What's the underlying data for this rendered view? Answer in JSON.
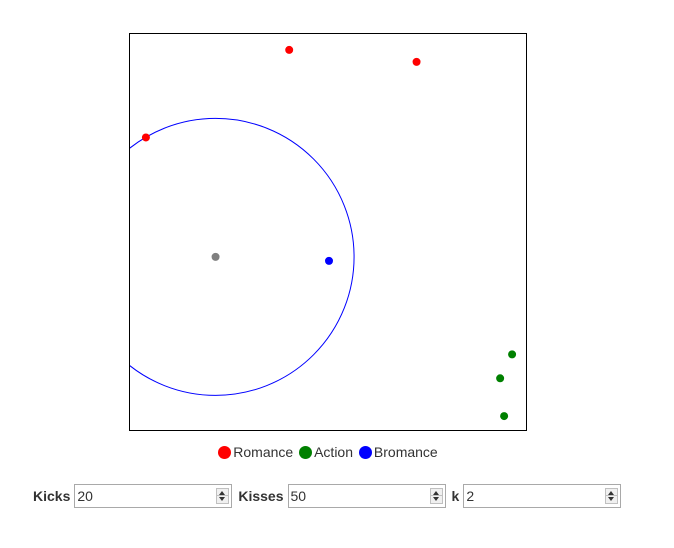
{
  "chart_data": {
    "type": "scatter",
    "title": "",
    "xlabel": "",
    "ylabel": "",
    "xlim": [
      0,
      100
    ],
    "ylim": [
      0,
      100
    ],
    "grid": false,
    "series": [
      {
        "name": "Romance",
        "color": "#ff0000",
        "points": [
          [
            40,
            96
          ],
          [
            72,
            93
          ],
          [
            4,
            74
          ]
        ]
      },
      {
        "name": "Action",
        "color": "#008000",
        "points": [
          [
            96,
            19.5
          ],
          [
            93,
            13.5
          ],
          [
            94,
            4
          ]
        ]
      },
      {
        "name": "Bromance",
        "color": "#0000ff",
        "points": [
          [
            50,
            43
          ]
        ]
      }
    ],
    "query_point": {
      "x": 21.5,
      "y": 44,
      "color": "#808080"
    },
    "neighborhood_circle": {
      "center_x": 21.5,
      "center_y": 44,
      "radius": 34.8,
      "color": "#0000ff"
    }
  },
  "legend": {
    "placement": "bottom-center",
    "items": [
      {
        "label": "Romance",
        "color": "#ff0000"
      },
      {
        "label": "Action",
        "color": "#008000"
      },
      {
        "label": "Bromance",
        "color": "#0000ff"
      }
    ]
  },
  "controls": {
    "kicks": {
      "label": "Kicks",
      "value": "20"
    },
    "kisses": {
      "label": "Kisses",
      "value": "50"
    },
    "k": {
      "label": "k",
      "value": "2"
    }
  }
}
